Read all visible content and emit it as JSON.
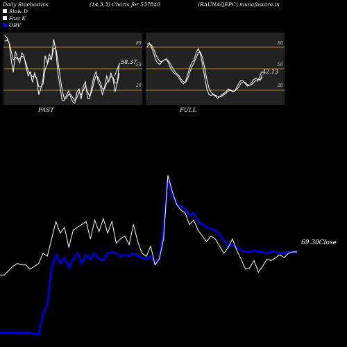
{
  "header": {
    "left": "Daily Stochastics",
    "middle": "(14,3,3) Charts for 537840",
    "right": "(RAUNAQEPC) munafasutra.in"
  },
  "legend": {
    "items": [
      {
        "label": "Slow  D",
        "color": "#ffffff"
      },
      {
        "label": "Fast K",
        "color": "#ffffff"
      },
      {
        "label": "OBV",
        "color": "#0000cc"
      }
    ]
  },
  "colors": {
    "background": "#000000",
    "panel": "#222222",
    "level_line": "#b8860b",
    "stoch_line": "#ffffff",
    "price_line": "#ffffff",
    "obv_line": "#0000cc"
  },
  "chart_data": [
    {
      "type": "line",
      "name": "FAST",
      "caption": "FAST",
      "ylim": [
        0,
        100
      ],
      "yticks": [
        "80",
        "50",
        "20"
      ],
      "levels": [
        80,
        50,
        20
      ],
      "last_value_label": "58.37",
      "series": [
        {
          "values": [
            96,
            93,
            86,
            62,
            45,
            74,
            65,
            58,
            72,
            68,
            52,
            40,
            46,
            31,
            44,
            36,
            14,
            22,
            36,
            68,
            58,
            70,
            62,
            91,
            76,
            44,
            26,
            6,
            6,
            13,
            19,
            11,
            4,
            2,
            18,
            22,
            8,
            26,
            32,
            9,
            8,
            26,
            39,
            46,
            32,
            26,
            14,
            24,
            40,
            32,
            44,
            36,
            18,
            30,
            58
          ]
        },
        {
          "values": [
            88,
            90,
            86,
            74,
            62,
            66,
            63,
            64,
            67,
            66,
            57,
            47,
            43,
            39,
            40,
            37,
            25,
            25,
            29,
            49,
            56,
            64,
            63,
            78,
            79,
            61,
            41,
            21,
            9,
            9,
            14,
            14,
            10,
            6,
            10,
            17,
            14,
            20,
            26,
            18,
            12,
            19,
            31,
            40,
            38,
            31,
            22,
            22,
            30,
            34,
            39,
            38,
            30,
            30,
            44
          ]
        }
      ]
    },
    {
      "type": "line",
      "name": "FULL",
      "caption": "FULL",
      "ylim": [
        0,
        100
      ],
      "yticks": [
        "80",
        "50",
        "20"
      ],
      "levels": [
        80,
        50,
        20
      ],
      "last_value_label": "42.13",
      "series": [
        {
          "values": [
            84,
            86,
            80,
            72,
            62,
            58,
            56,
            60,
            62,
            64,
            58,
            51,
            46,
            43,
            41,
            37,
            32,
            29,
            32,
            42,
            52,
            59,
            62,
            72,
            78,
            70,
            55,
            38,
            22,
            14,
            13,
            14,
            12,
            9,
            11,
            14,
            16,
            18,
            22,
            21,
            18,
            19,
            24,
            30,
            34,
            33,
            29,
            26,
            27,
            31,
            35,
            37,
            35,
            34,
            42
          ]
        },
        {
          "values": [
            80,
            84,
            83,
            78,
            70,
            64,
            60,
            60,
            62,
            63,
            61,
            56,
            51,
            46,
            43,
            40,
            35,
            32,
            31,
            36,
            45,
            53,
            58,
            65,
            72,
            73,
            65,
            51,
            35,
            23,
            17,
            15,
            13,
            12,
            11,
            12,
            14,
            16,
            19,
            20,
            19,
            19,
            21,
            25,
            30,
            32,
            31,
            28,
            27,
            28,
            31,
            34,
            35,
            35,
            38
          ]
        }
      ]
    },
    {
      "type": "line",
      "name": "price_obv",
      "last_value_label": "69.30Close",
      "ylim": [
        0,
        100
      ],
      "series": [
        {
          "values": [
            45,
            45,
            48,
            51,
            53,
            52,
            52,
            49,
            51,
            53,
            60,
            58,
            70,
            82,
            74,
            78,
            64,
            76,
            78,
            80,
            82,
            70,
            83,
            75,
            84,
            74,
            82,
            67,
            70,
            72,
            66,
            80,
            68,
            60,
            58,
            65,
            52,
            56,
            70,
            114,
            103,
            94,
            90,
            88,
            80,
            83,
            76,
            72,
            68,
            72,
            70,
            65,
            60,
            64,
            70,
            62,
            56,
            49,
            50,
            55,
            47,
            51,
            56,
            55,
            57,
            59,
            57,
            60,
            61,
            61
          ]
        },
        {
          "values": [
            5,
            5,
            5,
            5,
            5,
            5,
            5,
            5,
            4,
            4,
            18,
            25,
            50,
            59,
            53,
            57,
            50,
            56,
            60,
            53,
            59,
            56,
            60,
            56,
            55,
            60,
            61,
            60,
            58,
            59,
            58,
            60,
            58,
            57,
            56,
            58,
            53,
            57,
            78,
            112,
            99,
            95,
            92,
            91,
            86,
            88,
            82,
            80,
            78,
            77,
            76,
            73,
            69,
            65,
            66,
            64,
            62,
            61,
            61,
            62,
            61,
            61,
            60,
            61,
            61,
            60,
            60,
            61,
            61,
            61
          ]
        }
      ]
    }
  ]
}
